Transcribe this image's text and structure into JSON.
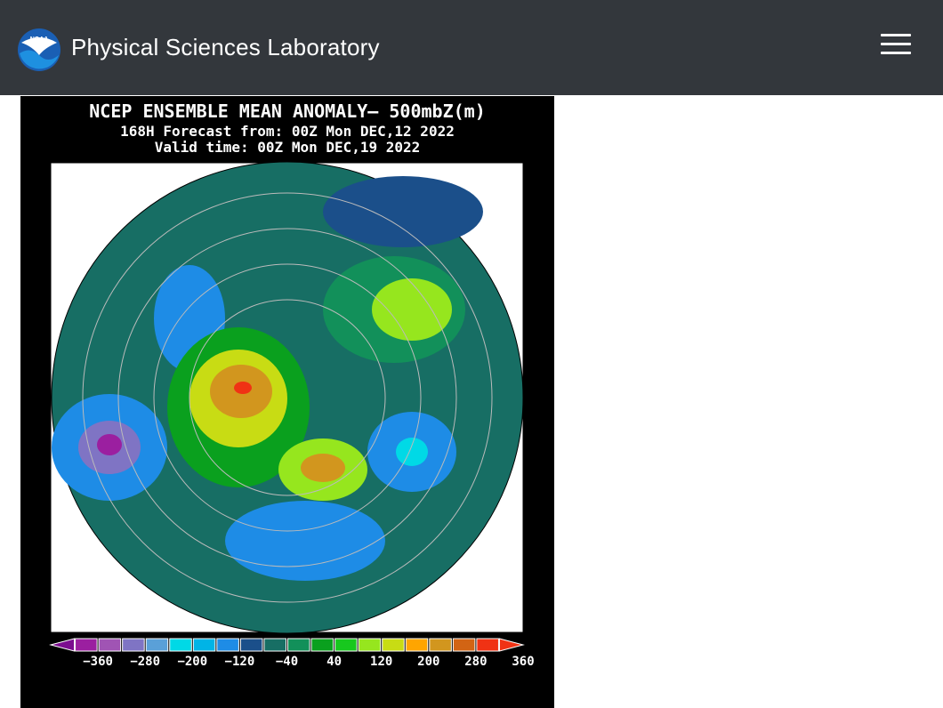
{
  "header": {
    "logo_text": "NOAA",
    "title": "Physical Sciences Laboratory"
  },
  "map_image": {
    "title": "NCEP ENSEMBLE MEAN ANOMALY– 500mbZ(m)",
    "forecast_line": "168H Forecast from: 00Z Mon DEC,12 2022",
    "valid_line": "Valid time: 00Z Mon DEC,19 2022",
    "colorbar": {
      "colors": [
        "#7b0d8f",
        "#9b1fa0",
        "#a054b4",
        "#7f74c4",
        "#5aa0d8",
        "#00d9e6",
        "#00b4e6",
        "#1e8ce6",
        "#1b4f8a",
        "#176e64",
        "#12905a",
        "#0aa01e",
        "#17c81e",
        "#96e61e",
        "#c8dc14",
        "#ffa500",
        "#d2961e",
        "#d26414",
        "#f03214",
        "#f03214"
      ],
      "labels": [
        "−360",
        "−280",
        "−200",
        "−120",
        "−40",
        "40",
        "120",
        "200",
        "280",
        "360"
      ]
    }
  }
}
